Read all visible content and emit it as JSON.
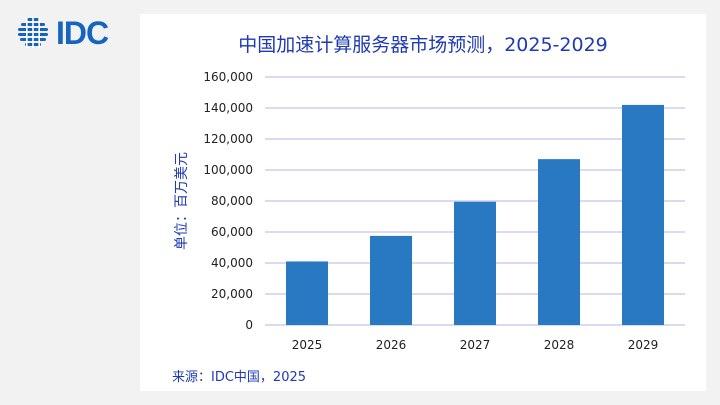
{
  "logo": {
    "text": "IDC",
    "icon": "idc-globe-logo",
    "color": "#1565c0"
  },
  "source": "来源：IDC中国，2025",
  "chart_data": {
    "type": "bar",
    "title": "中国加速计算服务器市场预测，2025-2029",
    "xlabel": "",
    "ylabel": "单位：百万美元",
    "categories": [
      "2025",
      "2026",
      "2027",
      "2028",
      "2029"
    ],
    "values": [
      41000,
      57500,
      79500,
      107000,
      142000
    ],
    "ylim": [
      0,
      160000
    ],
    "yticks": [
      0,
      20000,
      40000,
      60000,
      80000,
      100000,
      120000,
      140000,
      160000
    ],
    "ytick_labels": [
      "0",
      "20,000",
      "40,000",
      "60,000",
      "80,000",
      "100,000",
      "120,000",
      "140,000",
      "160,000"
    ],
    "grid": true,
    "legend": "none",
    "colors": {
      "bar": "#2878c2",
      "grid": "#b4b4e6",
      "text": "#1f3ab5"
    }
  }
}
